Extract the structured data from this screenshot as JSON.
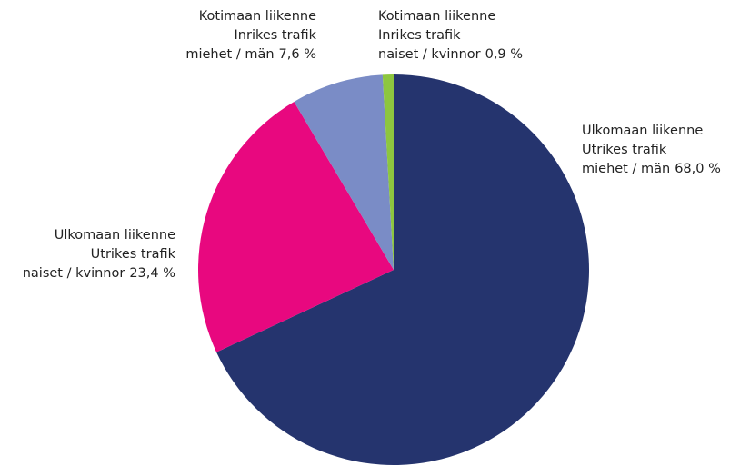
{
  "chart_data": {
    "type": "pie",
    "categories": [
      [
        "Ulkomaan liikenne",
        "Utrikes trafik",
        "miehet / män"
      ],
      [
        "Ulkomaan liikenne",
        "Utrikes trafik",
        "naiset / kvinnor"
      ],
      [
        "Kotimaan liikenne",
        "Inrikes trafik",
        "miehet / män"
      ],
      [
        "Kotimaan liikenne",
        "Inrikes trafik",
        "naiset / kvinnor"
      ]
    ],
    "values": [
      68.0,
      23.4,
      7.6,
      0.9
    ],
    "value_labels": [
      "68,0 %",
      "23,4 %",
      "7,6 %",
      "0,9 %"
    ],
    "colors": [
      "#25346e",
      "#e8087f",
      "#7a8cc6",
      "#8dc63f"
    ]
  }
}
